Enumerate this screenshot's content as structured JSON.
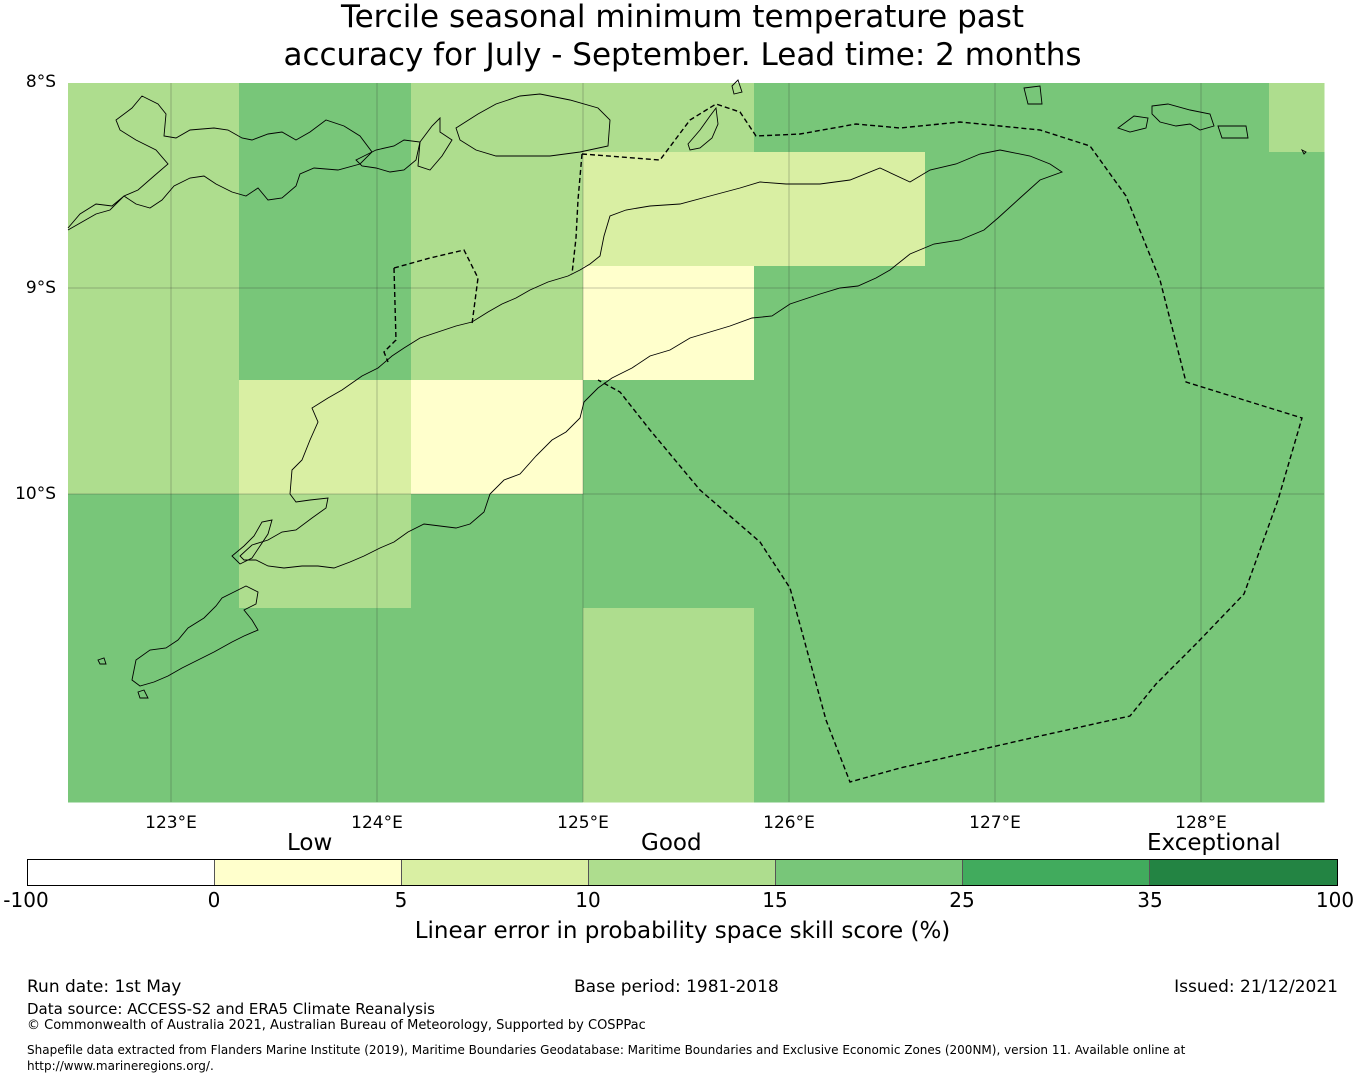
{
  "title_line1": "Tercile seasonal minimum temperature past",
  "title_line2": "accuracy for July - September. Lead time: 2 months",
  "map": {
    "lat_labels": [
      "8°S",
      "9°S",
      "10°S"
    ],
    "lon_labels": [
      "123°E",
      "124°E",
      "125°E",
      "126°E",
      "127°E",
      "128°E"
    ],
    "grid_colors": [
      [
        "#aedd8e",
        "#78c679",
        "#aedd8e",
        "#aedd8e",
        "#78c679",
        "#78c679",
        "#78c679",
        "#aedd8e"
      ],
      [
        "#aedd8e",
        "#78c679",
        "#aedd8e",
        "#d9efa3",
        "#d9efa3",
        "#78c679",
        "#78c679",
        "#78c679"
      ],
      [
        "#aedd8e",
        "#78c679",
        "#aedd8e",
        "#ffffcc",
        "#78c679",
        "#78c679",
        "#78c679",
        "#78c679"
      ],
      [
        "#aedd8e",
        "#d9efa3",
        "#ffffcc",
        "#78c679",
        "#78c679",
        "#78c679",
        "#78c679",
        "#78c679"
      ],
      [
        "#78c679",
        "#aedd8e",
        "#78c679",
        "#78c679",
        "#78c679",
        "#78c679",
        "#78c679",
        "#78c679"
      ],
      [
        "#78c679",
        "#78c679",
        "#78c679",
        "#aedd8e",
        "#78c679",
        "#78c679",
        "#78c679",
        "#78c679"
      ]
    ]
  },
  "categories": [
    "Low",
    "Good",
    "Exceptional"
  ],
  "colorbar": {
    "ticks": [
      "-100",
      "0",
      "5",
      "10",
      "15",
      "25",
      "35",
      "100"
    ],
    "colors": [
      "#ffffff",
      "#ffffcc",
      "#d9efa3",
      "#aedd8e",
      "#78c679",
      "#41ab5d",
      "#238443"
    ],
    "label": "Linear error in probability space skill score (%)"
  },
  "footer": {
    "run_date": "Run date: 1st May",
    "base_period": "Base period: 1981-2018",
    "issued": "Issued: 21/12/2021",
    "data_source": "Data source: ACCESS-S2 and ERA5 Climate Reanalysis",
    "copyright": "© Commonwealth of Australia 2021, Australian Bureau of Meteorology, Supported by COSPPac",
    "shapefile_line1": "Shapefile data extracted from Flanders Marine Institute (2019), Maritime Boundaries Geodatabase: Maritime Boundaries and Exclusive Economic Zones (200NM), version 11. Available online at",
    "shapefile_line2": "http://www.marineregions.org/."
  }
}
